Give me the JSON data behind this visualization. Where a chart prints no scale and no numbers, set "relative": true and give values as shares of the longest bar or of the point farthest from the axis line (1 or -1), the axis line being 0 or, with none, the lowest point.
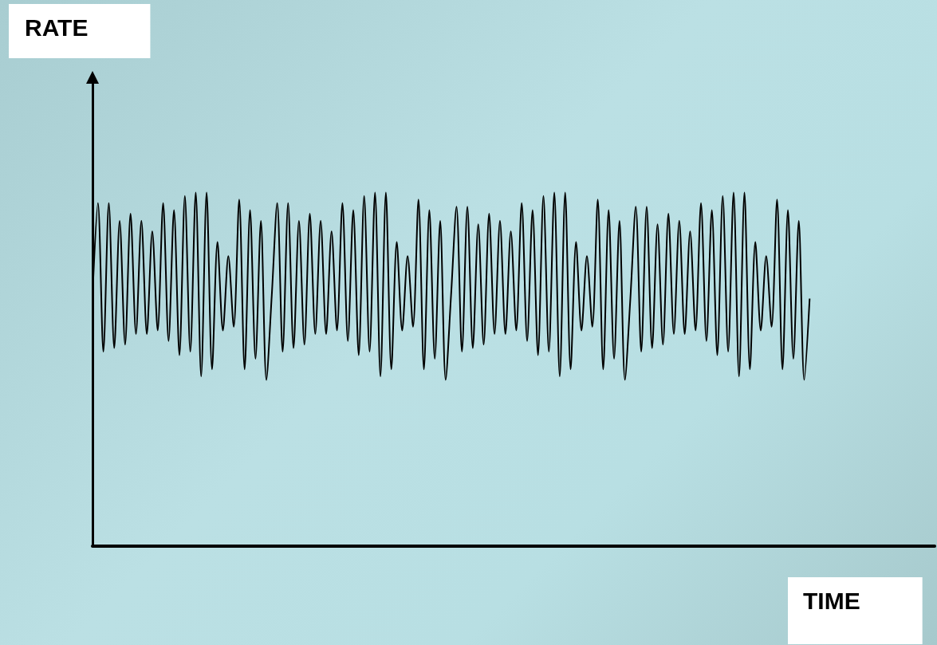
{
  "chart_data": {
    "type": "line",
    "relative": true,
    "xlabel": "TIME",
    "annotations": [
      "RATE"
    ],
    "color": "#000000",
    "grid": false,
    "line_style": "solid",
    "categories": [
      null,
      null,
      null,
      null,
      null,
      null,
      null,
      null,
      null,
      null,
      null,
      null,
      null,
      null,
      null,
      null,
      null,
      null,
      null,
      null,
      null,
      null,
      null,
      null,
      null,
      null,
      null,
      null,
      null,
      null,
      null,
      null,
      null,
      null,
      null,
      null,
      null,
      null,
      null,
      null,
      null,
      null,
      null,
      null,
      null,
      null,
      null,
      null,
      null,
      null,
      null,
      null,
      null,
      null,
      null,
      null,
      null,
      null,
      null,
      null,
      null,
      null,
      null,
      null,
      null,
      null,
      null,
      null,
      null,
      null,
      null,
      null,
      null,
      null,
      null,
      null,
      null,
      null,
      null,
      null,
      null,
      null,
      null,
      null,
      null,
      null,
      null,
      null,
      null,
      null,
      null,
      null,
      null,
      null,
      null,
      null,
      null,
      null,
      null,
      null,
      null,
      null,
      null,
      null,
      null,
      null,
      null,
      null,
      null,
      null,
      null,
      null,
      null,
      null,
      null,
      null,
      null,
      null,
      null,
      null,
      null,
      null,
      null,
      null,
      null,
      null,
      null,
      null,
      null,
      null,
      null,
      null,
      null,
      null,
      null,
      null,
      null,
      null,
      null,
      null,
      null,
      null,
      null,
      null,
      null,
      null,
      null,
      null,
      null,
      null,
      null,
      null,
      null,
      null,
      null,
      null
    ],
    "values": [
      0.71,
      0.97,
      0.55,
      0.97,
      0.56,
      0.92,
      0.57,
      0.94,
      0.6,
      0.92,
      0.6,
      0.89,
      0.61,
      0.97,
      0.58,
      0.95,
      0.54,
      0.99,
      0.55,
      1,
      0.48,
      1,
      0.5,
      0.86,
      0.61,
      0.82,
      0.62,
      0.98,
      0.5,
      0.95,
      0.53,
      0.92,
      0.47,
      0.71,
      0.97,
      0.55,
      0.97,
      0.56,
      0.92,
      0.57,
      0.94,
      0.6,
      0.92,
      0.6,
      0.89,
      0.61,
      0.97,
      0.58,
      0.95,
      0.54,
      0.99,
      0.55,
      1,
      0.48,
      1,
      0.5,
      0.86,
      0.61,
      0.82,
      0.62,
      0.98,
      0.5,
      0.95,
      0.53,
      0.92,
      0.47,
      0.71,
      0.96,
      0.55,
      0.96,
      0.56,
      0.91,
      0.57,
      0.94,
      0.6,
      0.92,
      0.6,
      0.89,
      0.61,
      0.97,
      0.58,
      0.95,
      0.54,
      0.99,
      0.55,
      1,
      0.48,
      1,
      0.5,
      0.86,
      0.61,
      0.82,
      0.62,
      0.98,
      0.5,
      0.95,
      0.53,
      0.92,
      0.47,
      0.7,
      0.96,
      0.55,
      0.96,
      0.56,
      0.91,
      0.57,
      0.94,
      0.6,
      0.92,
      0.6,
      0.89,
      0.61,
      0.97,
      0.58,
      0.95,
      0.54,
      0.99,
      0.55,
      1,
      0.48,
      1,
      0.5,
      0.86,
      0.61,
      0.82,
      0.62,
      0.98,
      0.5,
      0.95,
      0.53,
      0.92,
      0.47,
      0.7,
      null,
      null,
      null,
      null,
      null,
      null,
      null,
      null,
      null,
      null,
      null,
      null,
      null,
      null,
      null,
      null,
      null,
      null,
      null,
      null,
      null,
      null,
      null
    ]
  }
}
